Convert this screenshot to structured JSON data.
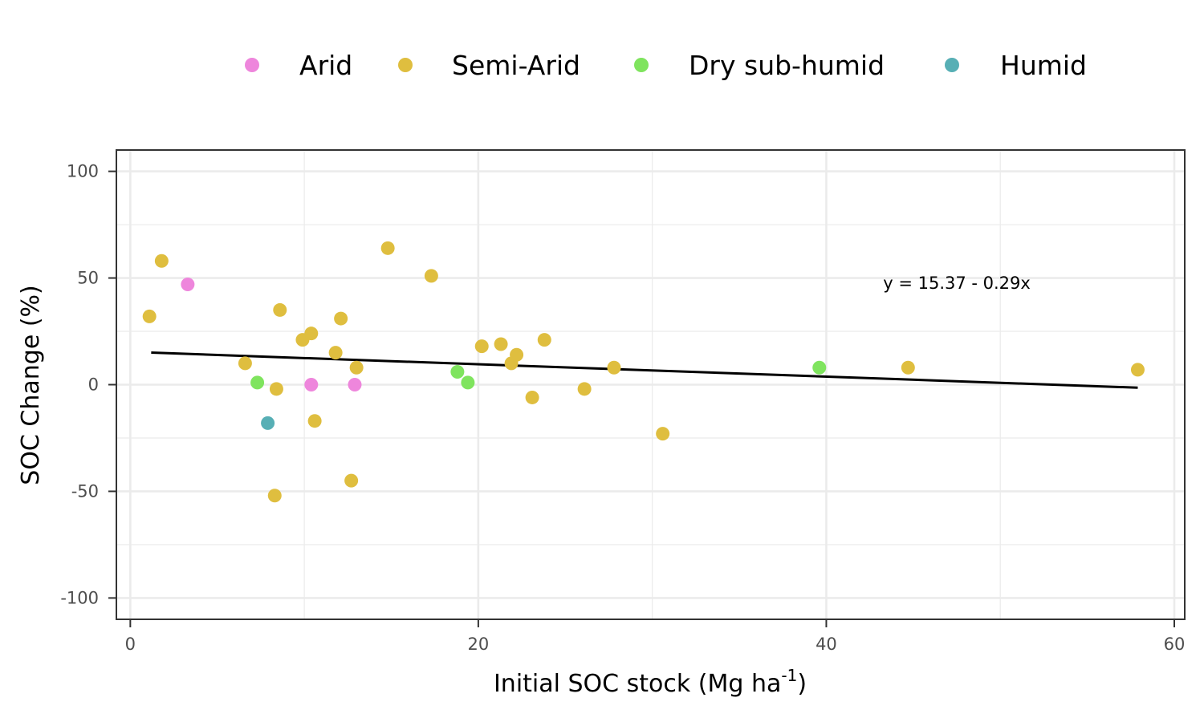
{
  "chart_data": {
    "type": "scatter",
    "xlabel": "Initial SOC stock (Mg ha",
    "xlabel_sup": "-1",
    "xlabel_close": ")",
    "ylabel": "SOC Change (%)",
    "xlim": [
      -0.8,
      60.6
    ],
    "ylim": [
      -110,
      110
    ],
    "x_ticks": [
      0,
      20,
      40,
      60
    ],
    "x_tick_labels": [
      "0",
      "20",
      "40",
      "60"
    ],
    "y_ticks": [
      100,
      50,
      0,
      -50,
      -100
    ],
    "y_tick_labels": [
      "100",
      "50",
      "0",
      "-50",
      "-100"
    ],
    "grid": true,
    "legend_position": "top",
    "annotation": "y = 15.37 - 0.29x",
    "trend_line": {
      "intercept": 15.37,
      "slope": -0.29,
      "x_range": [
        1.2,
        57.9
      ]
    },
    "series": [
      {
        "name": "Arid",
        "color": "#EE86DC",
        "points": [
          {
            "x": 3.3,
            "y": 47
          },
          {
            "x": 10.4,
            "y": 0
          },
          {
            "x": 12.9,
            "y": 0
          }
        ]
      },
      {
        "name": "Semi-Arid",
        "color": "#DFBE3F",
        "points": [
          {
            "x": 1.1,
            "y": 32
          },
          {
            "x": 1.8,
            "y": 58
          },
          {
            "x": 6.6,
            "y": 10
          },
          {
            "x": 8.4,
            "y": -2
          },
          {
            "x": 8.3,
            "y": -52
          },
          {
            "x": 8.6,
            "y": 35
          },
          {
            "x": 9.9,
            "y": 21
          },
          {
            "x": 10.4,
            "y": 24
          },
          {
            "x": 10.6,
            "y": -17
          },
          {
            "x": 11.8,
            "y": 15
          },
          {
            "x": 12.1,
            "y": 31
          },
          {
            "x": 12.7,
            "y": -45
          },
          {
            "x": 13.0,
            "y": 8
          },
          {
            "x": 14.8,
            "y": 64
          },
          {
            "x": 17.3,
            "y": 51
          },
          {
            "x": 20.2,
            "y": 18
          },
          {
            "x": 21.3,
            "y": 19
          },
          {
            "x": 21.9,
            "y": 10
          },
          {
            "x": 22.2,
            "y": 14
          },
          {
            "x": 23.1,
            "y": -6
          },
          {
            "x": 23.8,
            "y": 21
          },
          {
            "x": 26.1,
            "y": -2
          },
          {
            "x": 27.8,
            "y": 8
          },
          {
            "x": 30.6,
            "y": -23
          },
          {
            "x": 44.7,
            "y": 8
          },
          {
            "x": 57.9,
            "y": 7
          }
        ]
      },
      {
        "name": "Dry sub-humid",
        "color": "#7FE45E",
        "points": [
          {
            "x": 7.3,
            "y": 1
          },
          {
            "x": 18.8,
            "y": 6
          },
          {
            "x": 19.4,
            "y": 1
          },
          {
            "x": 39.6,
            "y": 8
          }
        ]
      },
      {
        "name": "Humid",
        "color": "#57AFB5",
        "points": [
          {
            "x": 7.9,
            "y": -18
          }
        ]
      }
    ]
  }
}
